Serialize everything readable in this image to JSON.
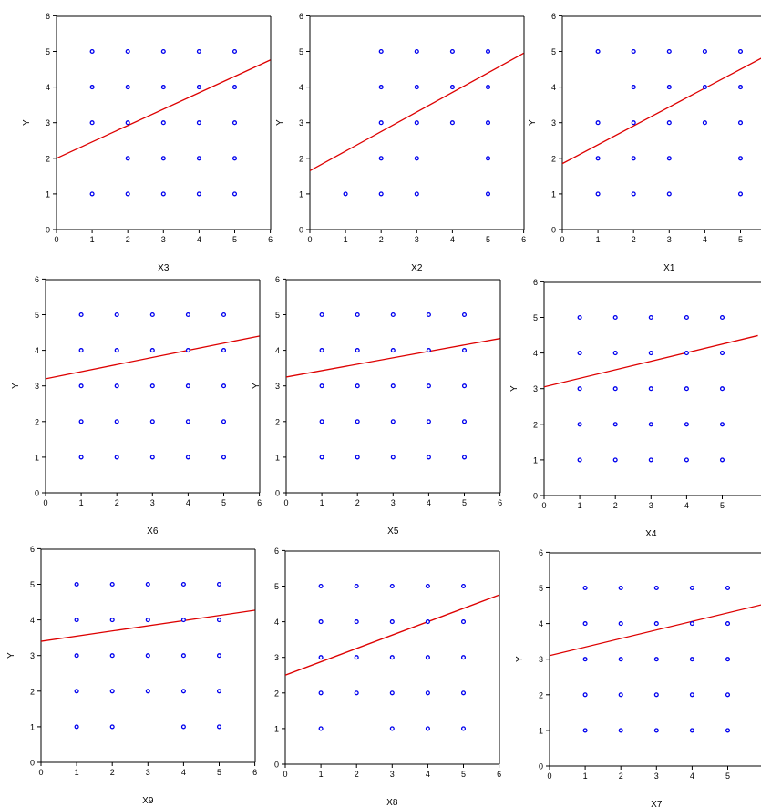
{
  "colors": {
    "point": "#0000ee",
    "point_fill": "#ffffff",
    "line": "#dd0000",
    "axis": "#000000"
  },
  "chart_data": [
    {
      "type": "scatter",
      "xlabel": "X3",
      "ylabel": "Y",
      "xlim": [
        0,
        6
      ],
      "ylim": [
        0,
        6
      ],
      "xticks": [
        0,
        1,
        2,
        3,
        4,
        5,
        6
      ],
      "yticks": [
        0,
        1,
        2,
        3,
        4,
        5,
        6
      ],
      "points": [
        [
          1,
          1
        ],
        [
          1,
          3
        ],
        [
          1,
          4
        ],
        [
          1,
          5
        ],
        [
          2,
          1
        ],
        [
          2,
          2
        ],
        [
          2,
          3
        ],
        [
          2,
          4
        ],
        [
          2,
          5
        ],
        [
          3,
          1
        ],
        [
          3,
          2
        ],
        [
          3,
          3
        ],
        [
          3,
          4
        ],
        [
          3,
          5
        ],
        [
          4,
          1
        ],
        [
          4,
          2
        ],
        [
          4,
          3
        ],
        [
          4,
          4
        ],
        [
          4,
          5
        ],
        [
          5,
          1
        ],
        [
          5,
          2
        ],
        [
          5,
          3
        ],
        [
          5,
          4
        ],
        [
          5,
          5
        ]
      ],
      "fit": {
        "intercept": 2.0,
        "slope": 0.46
      }
    },
    {
      "type": "scatter",
      "xlabel": "X2",
      "ylabel": "Y",
      "xlim": [
        0,
        6
      ],
      "ylim": [
        0,
        6
      ],
      "xticks": [
        0,
        1,
        2,
        3,
        4,
        5,
        6
      ],
      "yticks": [
        0,
        1,
        2,
        3,
        4,
        5,
        6
      ],
      "points": [
        [
          1,
          1
        ],
        [
          2,
          1
        ],
        [
          2,
          2
        ],
        [
          2,
          3
        ],
        [
          2,
          4
        ],
        [
          2,
          5
        ],
        [
          3,
          1
        ],
        [
          3,
          2
        ],
        [
          3,
          3
        ],
        [
          3,
          4
        ],
        [
          3,
          5
        ],
        [
          4,
          3
        ],
        [
          4,
          4
        ],
        [
          4,
          5
        ],
        [
          5,
          1
        ],
        [
          5,
          2
        ],
        [
          5,
          3
        ],
        [
          5,
          4
        ],
        [
          5,
          5
        ]
      ],
      "fit": {
        "intercept": 1.65,
        "slope": 0.55
      }
    },
    {
      "type": "scatter",
      "xlabel": "X1",
      "ylabel": "Y",
      "xlim": [
        0,
        6
      ],
      "ylim": [
        0,
        6
      ],
      "xticks": [
        0,
        1,
        2,
        3,
        4,
        5
      ],
      "yticks": [
        0,
        1,
        2,
        3,
        4,
        5,
        6
      ],
      "points": [
        [
          1,
          1
        ],
        [
          1,
          2
        ],
        [
          1,
          3
        ],
        [
          1,
          5
        ],
        [
          2,
          1
        ],
        [
          2,
          2
        ],
        [
          2,
          3
        ],
        [
          2,
          4
        ],
        [
          2,
          5
        ],
        [
          3,
          1
        ],
        [
          3,
          2
        ],
        [
          3,
          3
        ],
        [
          3,
          4
        ],
        [
          3,
          5
        ],
        [
          4,
          3
        ],
        [
          4,
          4
        ],
        [
          4,
          5
        ],
        [
          5,
          1
        ],
        [
          5,
          2
        ],
        [
          5,
          3
        ],
        [
          5,
          4
        ],
        [
          5,
          5
        ]
      ],
      "fit": {
        "intercept": 1.85,
        "slope": 0.53
      }
    },
    {
      "type": "scatter",
      "xlabel": "X6",
      "ylabel": "Y",
      "xlim": [
        0,
        6
      ],
      "ylim": [
        0,
        6
      ],
      "xticks": [
        0,
        1,
        2,
        3,
        4,
        5,
        6
      ],
      "yticks": [
        0,
        1,
        2,
        3,
        4,
        5,
        6
      ],
      "points": [
        [
          1,
          1
        ],
        [
          1,
          2
        ],
        [
          1,
          3
        ],
        [
          1,
          4
        ],
        [
          1,
          5
        ],
        [
          2,
          1
        ],
        [
          2,
          2
        ],
        [
          2,
          3
        ],
        [
          2,
          4
        ],
        [
          2,
          5
        ],
        [
          3,
          1
        ],
        [
          3,
          2
        ],
        [
          3,
          3
        ],
        [
          3,
          4
        ],
        [
          3,
          5
        ],
        [
          4,
          1
        ],
        [
          4,
          2
        ],
        [
          4,
          3
        ],
        [
          4,
          4
        ],
        [
          4,
          5
        ],
        [
          5,
          1
        ],
        [
          5,
          2
        ],
        [
          5,
          3
        ],
        [
          5,
          4
        ],
        [
          5,
          5
        ]
      ],
      "fit": {
        "intercept": 3.2,
        "slope": 0.2
      }
    },
    {
      "type": "scatter",
      "xlabel": "X5",
      "ylabel": "Y",
      "xlim": [
        0,
        6
      ],
      "ylim": [
        0,
        6
      ],
      "xticks": [
        0,
        1,
        2,
        3,
        4,
        5,
        6
      ],
      "yticks": [
        0,
        1,
        2,
        3,
        4,
        5,
        6
      ],
      "points": [
        [
          1,
          1
        ],
        [
          1,
          2
        ],
        [
          1,
          3
        ],
        [
          1,
          4
        ],
        [
          1,
          5
        ],
        [
          2,
          1
        ],
        [
          2,
          2
        ],
        [
          2,
          3
        ],
        [
          2,
          4
        ],
        [
          2,
          5
        ],
        [
          3,
          1
        ],
        [
          3,
          2
        ],
        [
          3,
          3
        ],
        [
          3,
          4
        ],
        [
          3,
          5
        ],
        [
          4,
          1
        ],
        [
          4,
          2
        ],
        [
          4,
          3
        ],
        [
          4,
          4
        ],
        [
          4,
          5
        ],
        [
          5,
          1
        ],
        [
          5,
          2
        ],
        [
          5,
          3
        ],
        [
          5,
          4
        ],
        [
          5,
          5
        ]
      ],
      "fit": {
        "intercept": 3.25,
        "slope": 0.18
      }
    },
    {
      "type": "scatter",
      "xlabel": "X4",
      "ylabel": "Y",
      "xlim": [
        0,
        6
      ],
      "ylim": [
        0,
        6
      ],
      "xticks": [
        0,
        1,
        2,
        3,
        4,
        5
      ],
      "yticks": [
        0,
        1,
        2,
        3,
        4,
        5,
        6
      ],
      "points": [
        [
          1,
          1
        ],
        [
          1,
          2
        ],
        [
          1,
          3
        ],
        [
          1,
          4
        ],
        [
          1,
          5
        ],
        [
          2,
          1
        ],
        [
          2,
          2
        ],
        [
          2,
          3
        ],
        [
          2,
          4
        ],
        [
          2,
          5
        ],
        [
          3,
          1
        ],
        [
          3,
          2
        ],
        [
          3,
          3
        ],
        [
          3,
          4
        ],
        [
          3,
          5
        ],
        [
          4,
          1
        ],
        [
          4,
          2
        ],
        [
          4,
          3
        ],
        [
          4,
          4
        ],
        [
          4,
          5
        ],
        [
          5,
          1
        ],
        [
          5,
          2
        ],
        [
          5,
          3
        ],
        [
          5,
          4
        ],
        [
          5,
          5
        ]
      ],
      "fit": {
        "intercept": 3.05,
        "slope": 0.24
      }
    },
    {
      "type": "scatter",
      "xlabel": "X9",
      "ylabel": "Y",
      "xlim": [
        0,
        6
      ],
      "ylim": [
        0,
        6
      ],
      "xticks": [
        0,
        1,
        2,
        3,
        4,
        5,
        6
      ],
      "yticks": [
        0,
        1,
        2,
        3,
        4,
        5,
        6
      ],
      "points": [
        [
          1,
          1
        ],
        [
          1,
          2
        ],
        [
          1,
          3
        ],
        [
          1,
          4
        ],
        [
          1,
          5
        ],
        [
          2,
          1
        ],
        [
          2,
          2
        ],
        [
          2,
          3
        ],
        [
          2,
          4
        ],
        [
          2,
          5
        ],
        [
          3,
          2
        ],
        [
          3,
          3
        ],
        [
          3,
          4
        ],
        [
          3,
          5
        ],
        [
          4,
          1
        ],
        [
          4,
          2
        ],
        [
          4,
          3
        ],
        [
          4,
          4
        ],
        [
          4,
          5
        ],
        [
          5,
          1
        ],
        [
          5,
          2
        ],
        [
          5,
          3
        ],
        [
          5,
          4
        ],
        [
          5,
          5
        ]
      ],
      "fit": {
        "intercept": 3.4,
        "slope": 0.145
      }
    },
    {
      "type": "scatter",
      "xlabel": "X8",
      "ylabel": "",
      "xlim": [
        0,
        6
      ],
      "ylim": [
        0,
        6
      ],
      "xticks": [
        0,
        1,
        2,
        3,
        4,
        5,
        6
      ],
      "yticks": [
        0,
        1,
        2,
        3,
        4,
        5,
        6
      ],
      "points": [
        [
          1,
          1
        ],
        [
          1,
          2
        ],
        [
          1,
          3
        ],
        [
          1,
          4
        ],
        [
          1,
          5
        ],
        [
          2,
          2
        ],
        [
          2,
          3
        ],
        [
          2,
          4
        ],
        [
          2,
          5
        ],
        [
          3,
          1
        ],
        [
          3,
          2
        ],
        [
          3,
          3
        ],
        [
          3,
          4
        ],
        [
          3,
          5
        ],
        [
          4,
          1
        ],
        [
          4,
          2
        ],
        [
          4,
          3
        ],
        [
          4,
          4
        ],
        [
          4,
          5
        ],
        [
          5,
          1
        ],
        [
          5,
          2
        ],
        [
          5,
          3
        ],
        [
          5,
          4
        ],
        [
          5,
          5
        ]
      ],
      "fit": {
        "intercept": 2.5,
        "slope": 0.375
      }
    },
    {
      "type": "scatter",
      "xlabel": "X7",
      "ylabel": "Y",
      "xlim": [
        0,
        6
      ],
      "ylim": [
        0,
        6
      ],
      "xticks": [
        0,
        1,
        2,
        3,
        4,
        5
      ],
      "yticks": [
        0,
        1,
        2,
        3,
        4,
        5,
        6
      ],
      "points": [
        [
          1,
          1
        ],
        [
          1,
          2
        ],
        [
          1,
          3
        ],
        [
          1,
          4
        ],
        [
          1,
          5
        ],
        [
          2,
          1
        ],
        [
          2,
          2
        ],
        [
          2,
          3
        ],
        [
          2,
          4
        ],
        [
          2,
          5
        ],
        [
          3,
          1
        ],
        [
          3,
          2
        ],
        [
          3,
          3
        ],
        [
          3,
          4
        ],
        [
          3,
          5
        ],
        [
          4,
          1
        ],
        [
          4,
          2
        ],
        [
          4,
          3
        ],
        [
          4,
          4
        ],
        [
          4,
          5
        ],
        [
          5,
          1
        ],
        [
          5,
          2
        ],
        [
          5,
          3
        ],
        [
          5,
          4
        ],
        [
          5,
          5
        ]
      ],
      "fit": {
        "intercept": 3.1,
        "slope": 0.24
      }
    }
  ]
}
